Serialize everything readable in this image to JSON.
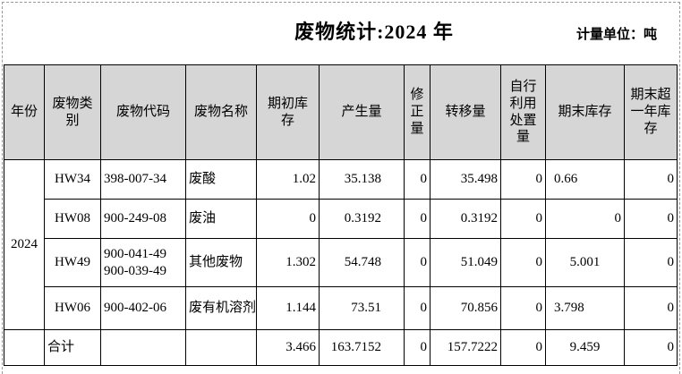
{
  "title": "废物统计:2024 年",
  "unit_label": "计量单位：吨",
  "colors": {
    "header_bg": "#d6d6d6",
    "grid_border": "#000000",
    "print_area_dash": "#9a9a9a",
    "background": "#ffffff"
  },
  "table": {
    "columns": [
      {
        "label": "年份"
      },
      {
        "label": "废物类\n别"
      },
      {
        "label": "废物代码"
      },
      {
        "label": "废物名称"
      },
      {
        "label": "期初库\n存"
      },
      {
        "label": "产生量"
      },
      {
        "label": "修\n正\n量"
      },
      {
        "label": "转移量"
      },
      {
        "label": "自行\n利用\n处置\n量"
      },
      {
        "label": "期末库存"
      },
      {
        "label": "期末超\n一年库\n存"
      }
    ],
    "rows": [
      {
        "cells": [
          {
            "v": "2024",
            "a": "c",
            "rs": 4,
            "name": "year-cell"
          },
          {
            "v": "HW34",
            "a": "c"
          },
          {
            "v": "398-007-34",
            "a": "l"
          },
          {
            "v": "废酸",
            "a": "l"
          },
          {
            "v": "1.02",
            "a": "r"
          },
          {
            "v": "35.138",
            "a": "rp"
          },
          {
            "v": "0",
            "a": "r"
          },
          {
            "v": "35.498",
            "a": "r"
          },
          {
            "v": "0",
            "a": "r"
          },
          {
            "v": "0.66",
            "a": "lp"
          },
          {
            "v": "0",
            "a": "r"
          }
        ]
      },
      {
        "cells": [
          {
            "v": "HW08",
            "a": "c"
          },
          {
            "v": "900-249-08",
            "a": "l"
          },
          {
            "v": "废油",
            "a": "l"
          },
          {
            "v": "0",
            "a": "r"
          },
          {
            "v": "0.3192",
            "a": "rp"
          },
          {
            "v": "0",
            "a": "r"
          },
          {
            "v": "0.3192",
            "a": "r"
          },
          {
            "v": "0",
            "a": "r"
          },
          {
            "v": "0",
            "a": "r"
          },
          {
            "v": "0",
            "a": "r"
          }
        ]
      },
      {
        "cells": [
          {
            "v": "HW49",
            "a": "c"
          },
          {
            "v": "900-041-49\n900-039-49",
            "a": "l"
          },
          {
            "v": "其他废物",
            "a": "l"
          },
          {
            "v": "1.302",
            "a": "r"
          },
          {
            "v": "54.748",
            "a": "rp"
          },
          {
            "v": "0",
            "a": "r"
          },
          {
            "v": "51.049",
            "a": "r"
          },
          {
            "v": "0",
            "a": "r"
          },
          {
            "v": "5.001",
            "a": "c"
          },
          {
            "v": "0",
            "a": "r"
          }
        ]
      },
      {
        "cells": [
          {
            "v": "HW06",
            "a": "c"
          },
          {
            "v": "900-402-06",
            "a": "l"
          },
          {
            "v": "废有机溶剂",
            "a": "l"
          },
          {
            "v": "1.144",
            "a": "r"
          },
          {
            "v": "73.51",
            "a": "rp"
          },
          {
            "v": "0",
            "a": "r"
          },
          {
            "v": "70.856",
            "a": "r"
          },
          {
            "v": "0",
            "a": "r"
          },
          {
            "v": "3.798",
            "a": "lp"
          },
          {
            "v": "0",
            "a": "r"
          }
        ]
      },
      {
        "cells": [
          {
            "v": "",
            "a": "c",
            "name": "year-cell-empty"
          },
          {
            "v": "合计",
            "a": "l",
            "name": "total-label-cell"
          },
          {
            "v": "",
            "a": "l"
          },
          {
            "v": "",
            "a": "l"
          },
          {
            "v": "3.466",
            "a": "r"
          },
          {
            "v": "163.7152",
            "a": "rp"
          },
          {
            "v": "0",
            "a": "r"
          },
          {
            "v": "157.7222",
            "a": "r"
          },
          {
            "v": "0",
            "a": "r"
          },
          {
            "v": "9.459",
            "a": "c"
          },
          {
            "v": "0",
            "a": "r"
          }
        ]
      }
    ]
  }
}
